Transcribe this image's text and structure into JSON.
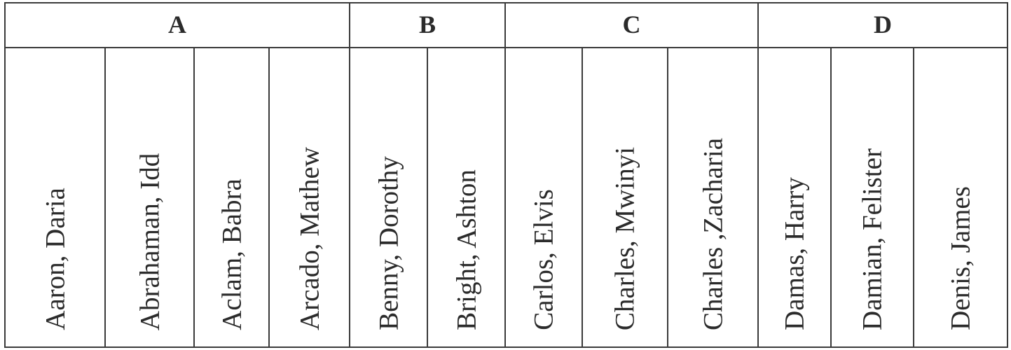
{
  "table": {
    "groups": [
      {
        "label": "A",
        "names": [
          "Aaron, Daria",
          "Abrahaman, Idd",
          "Aclam, Babra",
          "Arcado, Mathew"
        ]
      },
      {
        "label": "B",
        "names": [
          "Benny, Dorothy",
          "Bright, Ashton"
        ]
      },
      {
        "label": "C",
        "names": [
          "Carlos, Elvis",
          "Charles, Mwinyi",
          "Charles ,Zacharia"
        ]
      },
      {
        "label": "D",
        "names": [
          "Damas, Harry",
          "Damian, Felister",
          "Denis, James"
        ]
      }
    ]
  },
  "colors": {
    "border": "#3a3a3a",
    "text": "#2b2b2b",
    "background": "#ffffff"
  }
}
